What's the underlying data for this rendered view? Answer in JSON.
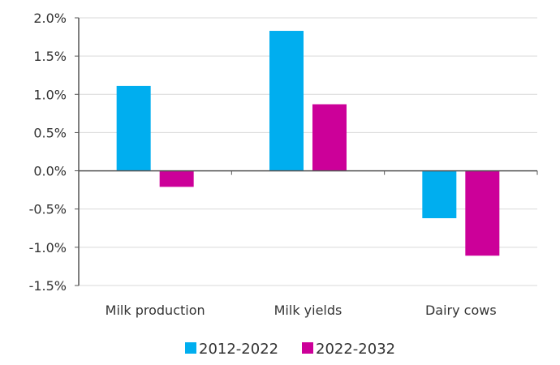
{
  "chart_data": {
    "type": "bar",
    "categories": [
      "Milk production",
      "Milk yields",
      "Dairy cows"
    ],
    "series": [
      {
        "name": "2012-2022",
        "color": "#00AEEF",
        "values": [
          1.11,
          1.83,
          -0.62
        ]
      },
      {
        "name": "2022-2032",
        "color": "#CC0099",
        "values": [
          -0.21,
          0.87,
          -1.11
        ]
      }
    ],
    "ylim": [
      -1.5,
      2.0
    ],
    "yticks": [
      2.0,
      1.5,
      1.0,
      0.5,
      0.0,
      -0.5,
      -1.0,
      -1.5
    ],
    "ytick_labels": [
      "2.0%",
      "1.5%",
      "1.0%",
      "0.5%",
      "0.0%",
      "-0.5%",
      "-1.0%",
      "-1.5%"
    ],
    "grid": true,
    "legend_position": "bottom",
    "title": "",
    "xlabel": "",
    "ylabel": ""
  }
}
